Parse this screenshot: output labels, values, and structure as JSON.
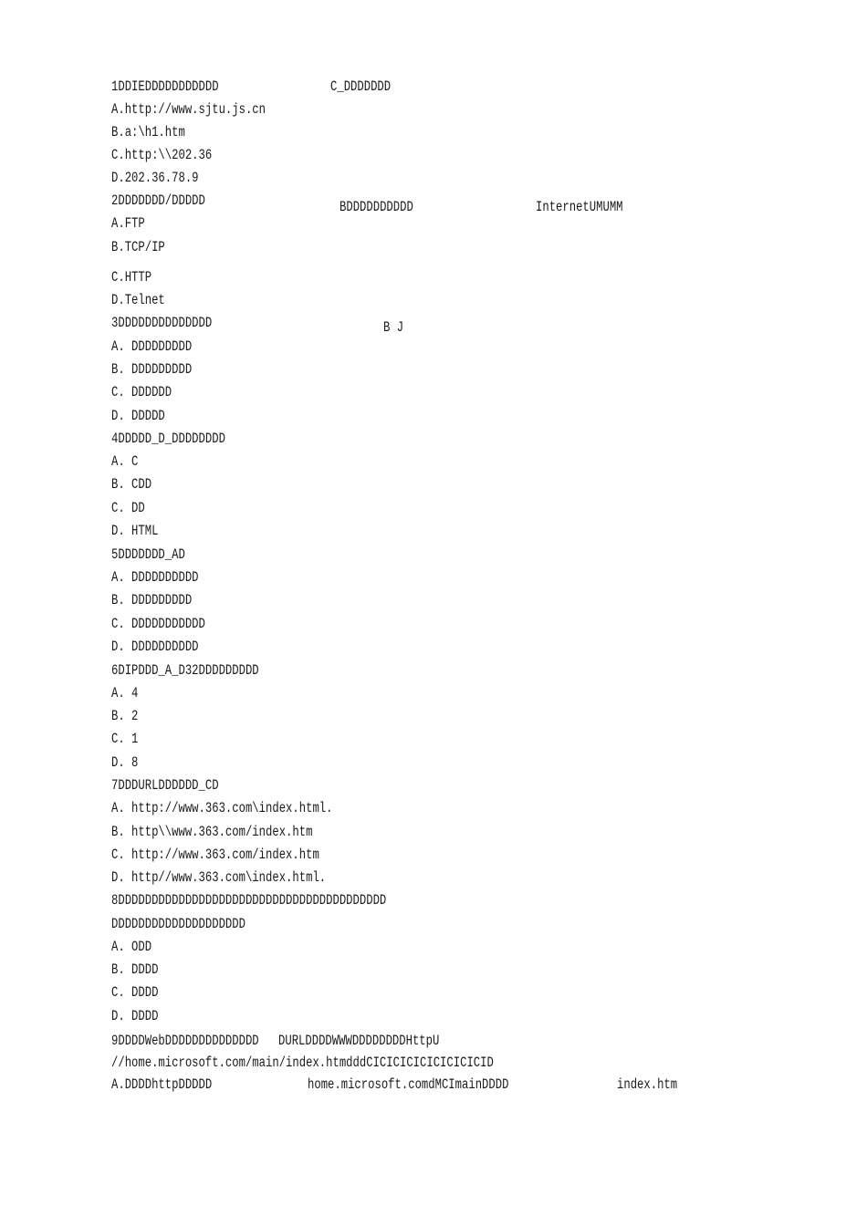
{
  "lines": [
    "1DDIEDDDDDDDDDDD",
    "A.http://www.sjtu.js.cn",
    "B.a:\\h1.htm",
    "C.http:\\\\202.36",
    "D.202.36.78.9",
    "2DDDDDDD/DDDDD",
    "A.FTP",
    "B.TCP/IP",
    "C.HTTP",
    "D.Telnet",
    "3DDDDDDDDDDDDDD",
    "A. DDDDDDDDD",
    "B. DDDDDDDDD",
    "C. DDDDDD",
    "D. DDDDD",
    "4DDDDD_D_DDDDDDDD",
    "A. C",
    "B. CDD",
    "C. DD",
    "D. HTML",
    "5DDDDDDD_AD",
    "A. DDDDDDDDDD",
    "B. DDDDDDDDD",
    "C. DDDDDDDDDDD",
    "D. DDDDDDDDDD",
    "6DIPDDD_A_D32DDDDDDDDD",
    "A. 4",
    "B. 2",
    "C. 1",
    "D. 8",
    "7DDDURLDDDDDD_CD",
    "A. http://www.363.com\\index.html.",
    "B. http\\\\www.363.com/index.htm",
    "C. http://www.363.com/index.htm",
    "D. http//www.363.com\\index.html.",
    "8DDDDDDDDDDDDDDDDDDDDDDDDDDDDDDDDDDDDDDDD",
    "DDDDDDDDDDDDDDDDDDDD",
    "A. ODD",
    "B. DDDD",
    "C. DDDD",
    "D. DDDD",
    "//home.microsoft.com/main/index.htmdddCICICICICICICICICID",
    "A.DDDDhttpDDDDD"
  ],
  "side_notes": {
    "q1_answer": "C_DDDDDDD",
    "q2_answer": "BDDDDDDDDDD",
    "q2_note": "InternetUMUMM",
    "q3_answer": "B J",
    "q9_a": "9DDDDWebDDDDDDDDDDDDDD",
    "q9_b": "DURLDDDDWWWDDDDDDDDHttpU",
    "last_mid": "home.microsoft.comdMCImainDDDD",
    "last_right": "index.htm"
  }
}
